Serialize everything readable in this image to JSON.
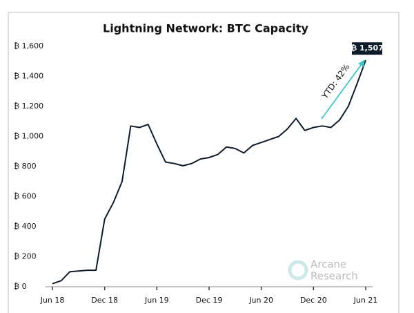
{
  "chart_data": {
    "type": "line",
    "title": "Lightning Network: BTC Capacity",
    "x": [
      "2018-06",
      "2018-07",
      "2018-08",
      "2018-09",
      "2018-10",
      "2018-11",
      "2018-12",
      "2019-01",
      "2019-02",
      "2019-03",
      "2019-04",
      "2019-05",
      "2019-06",
      "2019-07",
      "2019-08",
      "2019-09",
      "2019-10",
      "2019-11",
      "2019-12",
      "2020-01",
      "2020-02",
      "2020-03",
      "2020-04",
      "2020-05",
      "2020-06",
      "2020-07",
      "2020-08",
      "2020-09",
      "2020-10",
      "2020-11",
      "2020-12",
      "2021-01",
      "2021-02",
      "2021-03",
      "2021-04",
      "2021-05",
      "2021-06"
    ],
    "series": [
      {
        "color": "#0d1b2a",
        "values": [
          20,
          40,
          100,
          105,
          110,
          110,
          450,
          560,
          700,
          1070,
          1060,
          1080,
          950,
          830,
          820,
          805,
          820,
          850,
          860,
          880,
          930,
          920,
          890,
          940,
          960,
          980,
          1000,
          1050,
          1120,
          1040,
          1060,
          1070,
          1060,
          1110,
          1200,
          1350,
          1507
        ],
        "value_labels": [
          null,
          null,
          null,
          null,
          null,
          null,
          null,
          null,
          null,
          null,
          null,
          null,
          null,
          null,
          null,
          null,
          null,
          null,
          null,
          null,
          null,
          null,
          null,
          null,
          null,
          null,
          null,
          null,
          null,
          null,
          null,
          null,
          null,
          null,
          null,
          null,
          "₿ 1,507"
        ]
      }
    ],
    "ylim": [
      0,
      1600
    ],
    "yticks": [
      {
        "value": 0,
        "label": "₿ 0"
      },
      {
        "value": 200,
        "label": "₿ 200"
      },
      {
        "value": 400,
        "label": "₿ 400"
      },
      {
        "value": 600,
        "label": "₿ 600"
      },
      {
        "value": 800,
        "label": "₿ 800"
      },
      {
        "value": 1000,
        "label": "₿ 1,000"
      },
      {
        "value": 1200,
        "label": "₿ 1,200"
      },
      {
        "value": 1400,
        "label": "₿ 1,400"
      },
      {
        "value": 1600,
        "label": "₿ 1,600"
      }
    ],
    "xticks": [
      {
        "value": "2018-06",
        "label": "Jun 18"
      },
      {
        "value": "2018-12",
        "label": "Dec 18"
      },
      {
        "value": "2019-06",
        "label": "Jun 19"
      },
      {
        "value": "2019-12",
        "label": "Dec 19"
      },
      {
        "value": "2020-06",
        "label": "Jun 20"
      },
      {
        "value": "2020-12",
        "label": "Dec 20"
      },
      {
        "value": "2021-06",
        "label": "Jun 21"
      }
    ],
    "annotations": [
      {
        "text": "YTD: 42%",
        "color": "#3cc8c8"
      }
    ],
    "logo": [
      "Arcane",
      "Research"
    ]
  }
}
